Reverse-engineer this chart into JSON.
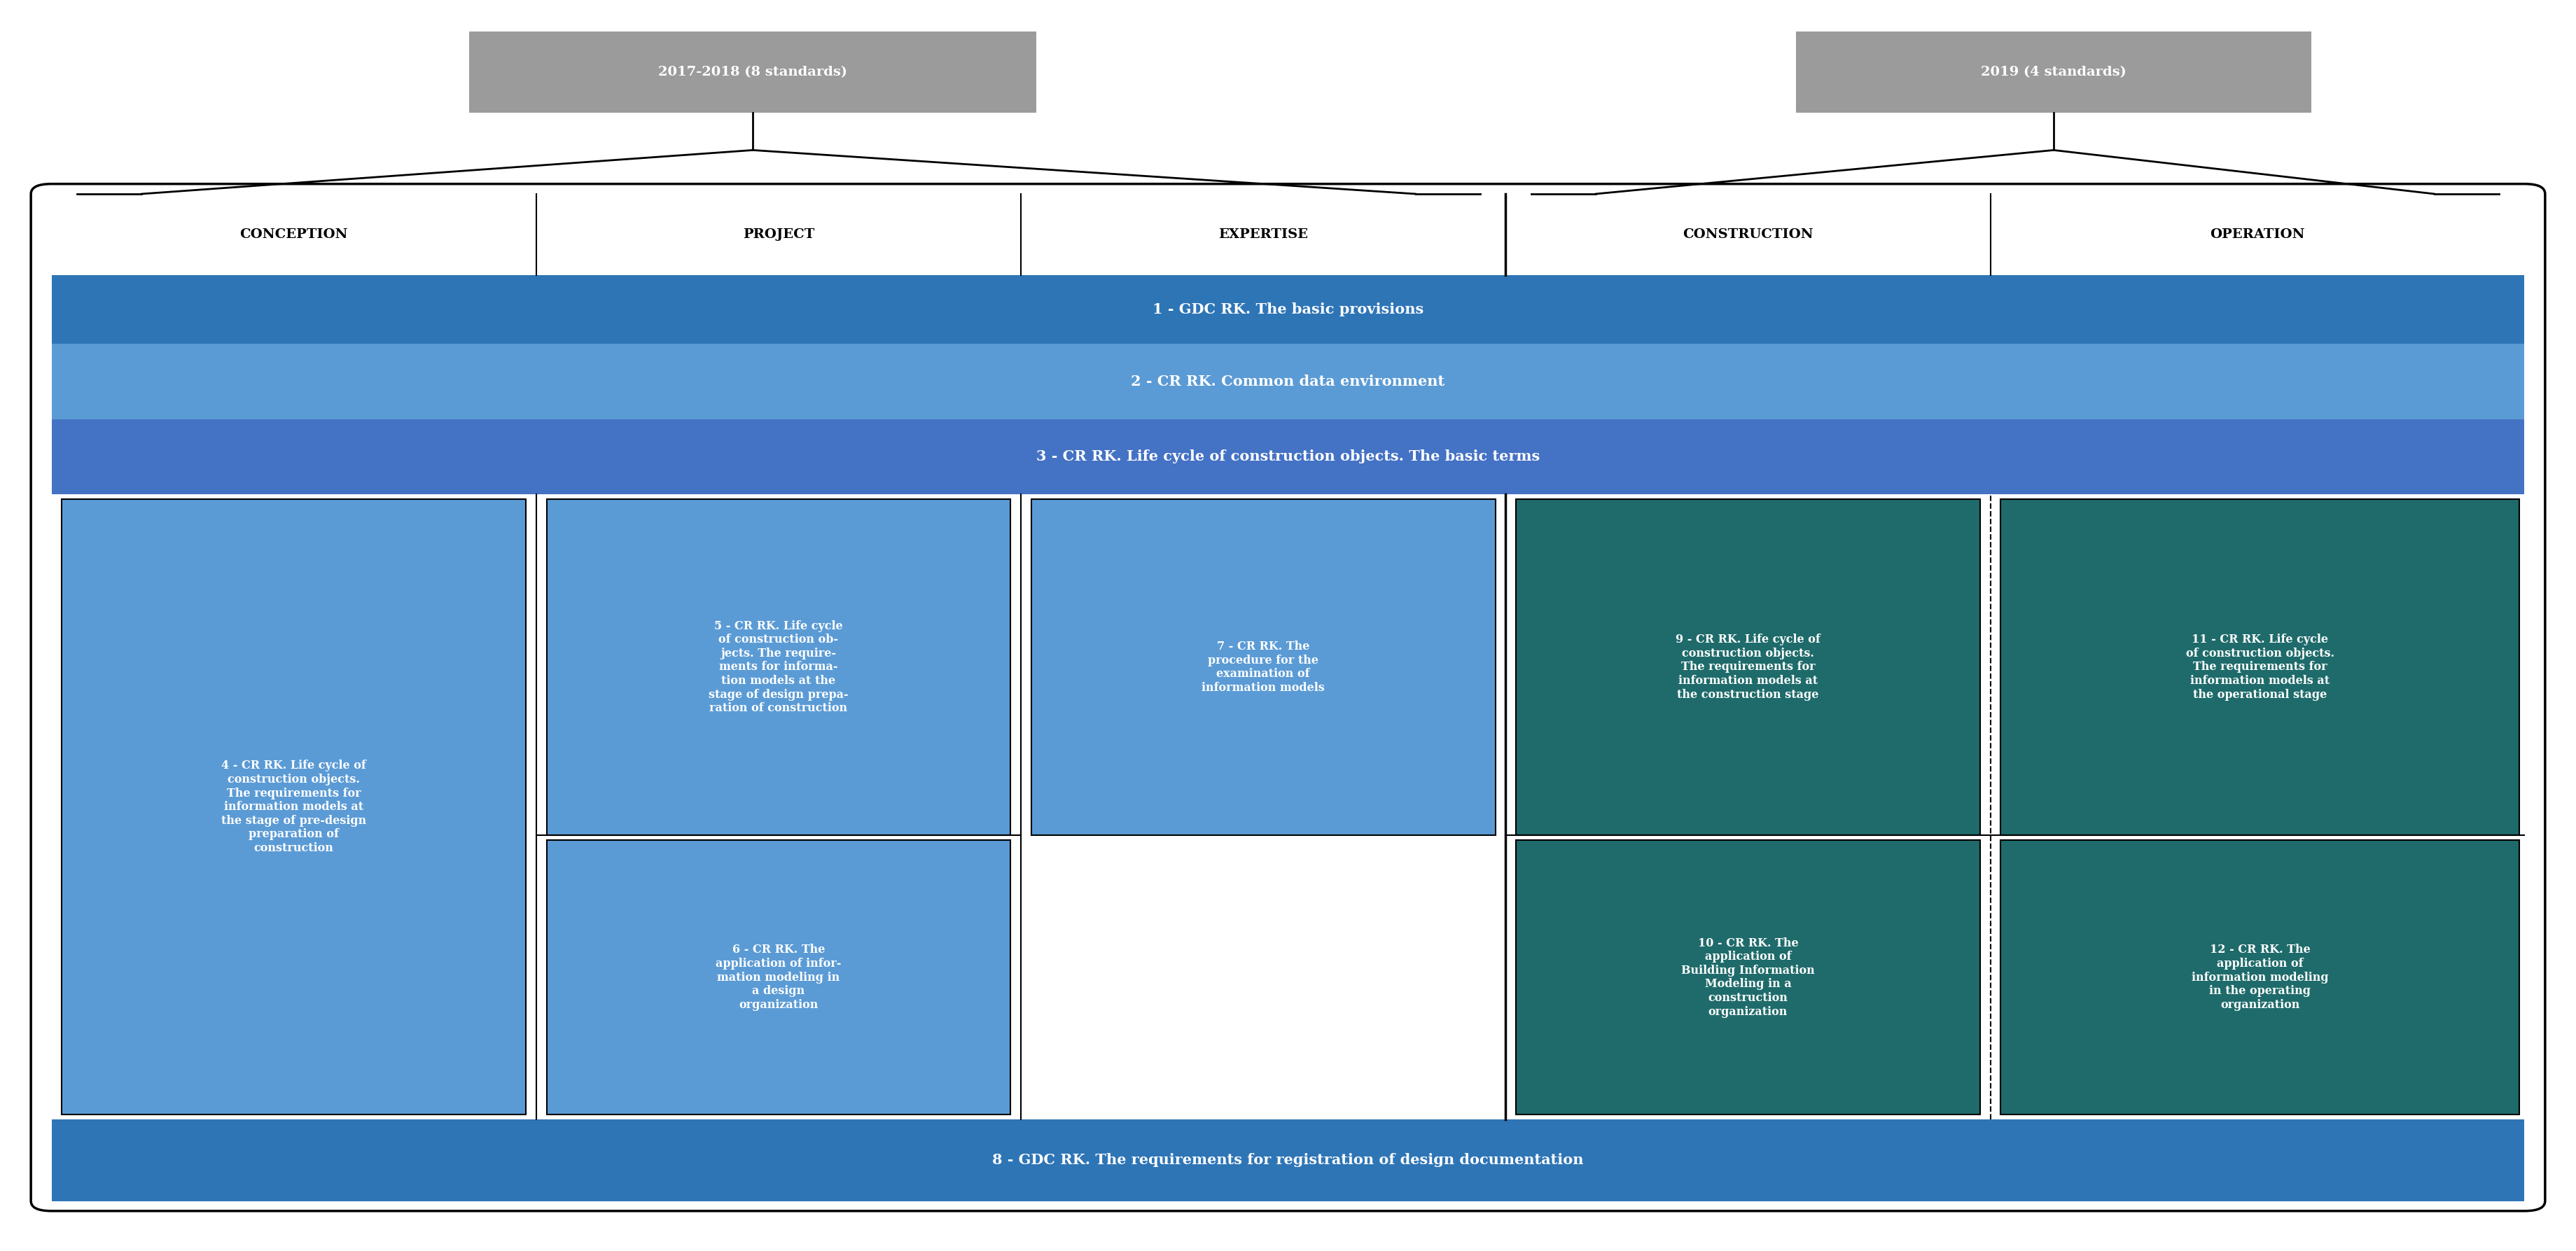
{
  "fig_width": 36.79,
  "fig_height": 17.87,
  "bg_color": "#ffffff",
  "gray_box_color": "#9b9b9b",
  "blue_light": "#5b9bd5",
  "blue_mid": "#4472c4",
  "blue_dark": "#2e75b6",
  "teal_dark": "#1f6b6b",
  "white": "#ffffff",
  "black": "#000000",
  "label_2017": "2017-2018 (8 standards)",
  "label_2019": "2019 (4 standards)",
  "col_headers": [
    "CONCEPTION",
    "PROJECT",
    "EXPERTISE",
    "CONSTRUCTION",
    "OPERATION"
  ],
  "row1_text": "1 - GDC RK. The basic provisions",
  "row2_text": "2 - CR RK. Common data environment",
  "row3_text": "3 - CR RK. Life cycle of construction objects. The basic terms",
  "box4_text": "4 - CR RK. Life cycle of\nconstruction objects.\nThe requirements for\ninformation models at\nthe stage of pre-design\npreparation of\nconstruction",
  "box5_text": "5 - CR RK. Life cycle\nof construction ob-\njects. The require-\nments for informa-\ntion models at the\nstage of design prepa-\nration of construction",
  "box6_text": "6 - CR RK. The\napplication of infor-\nmation modeling in\na design\norganization",
  "box7_text": "7 - CR RK. The\nprocedure for the\nexamination of\ninformation models",
  "box9_text": "9 - CR RK. Life cycle of\nconstruction objects.\nThe requirements for\ninformation models at\nthe construction stage",
  "box10_text": "10 - CR RK. The\napplication of\nBuilding Information\nModeling in a\nconstruction\norganization",
  "box11_text": "11 - CR RK. Life cycle\nof construction objects.\nThe requirements for\ninformation models at\nthe operational stage",
  "box12_text": "12 - CR RK. The\napplication of\ninformation modeling\nin the operating\norganization",
  "row8_text": "8 - GDC RK. The requirements for registration of design documentation"
}
